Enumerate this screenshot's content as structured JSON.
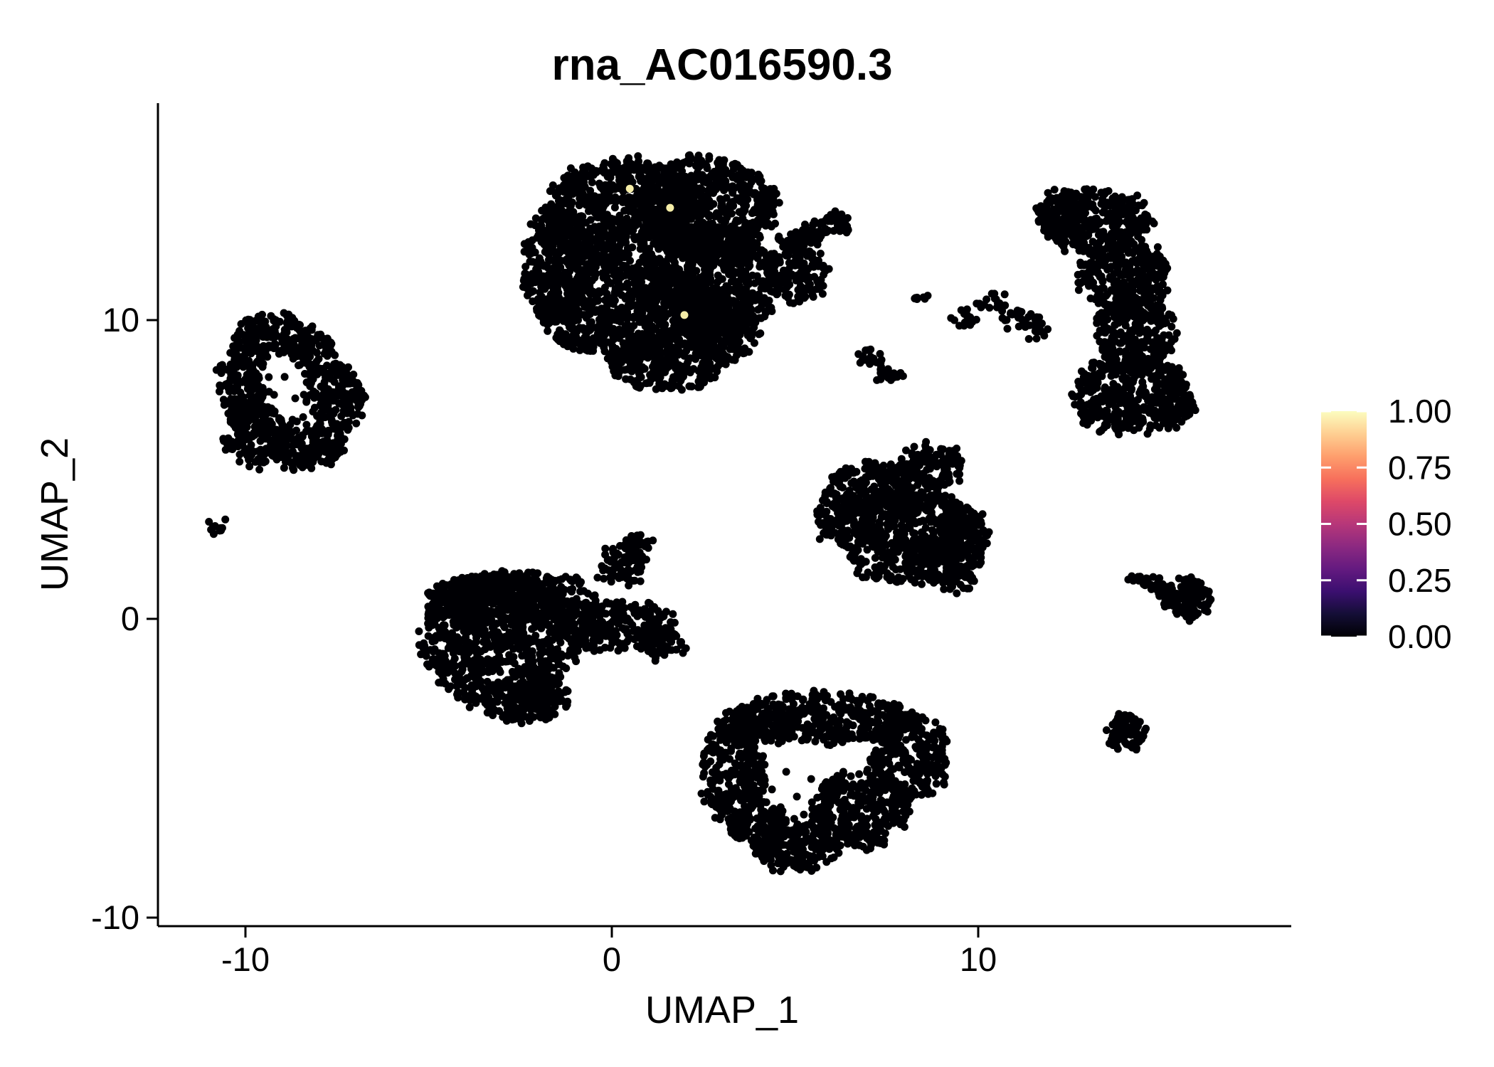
{
  "title": "rna_AC016590.3",
  "axes": {
    "x": {
      "label": "UMAP_1",
      "tick_labels": [
        "-10",
        "0",
        "10"
      ],
      "tick_values": [
        -10,
        0,
        10
      ]
    },
    "y": {
      "label": "UMAP_2",
      "tick_labels": [
        "10",
        "0",
        "-10"
      ],
      "tick_values": [
        10,
        0,
        -10
      ]
    }
  },
  "legend": {
    "labels": [
      "1.00",
      "0.75",
      "0.50",
      "0.25",
      "0.00"
    ],
    "values": [
      1.0,
      0.75,
      0.5,
      0.25,
      0.0
    ],
    "colormap": [
      [
        0.0,
        "#000004"
      ],
      [
        0.1,
        "#140E36"
      ],
      [
        0.2,
        "#3B0F70"
      ],
      [
        0.3,
        "#641A80"
      ],
      [
        0.4,
        "#8C2981"
      ],
      [
        0.5,
        "#B73779"
      ],
      [
        0.6,
        "#DE4968"
      ],
      [
        0.7,
        "#F7705C"
      ],
      [
        0.8,
        "#FE9F6D"
      ],
      [
        0.9,
        "#FECF92"
      ],
      [
        1.0,
        "#FCFDBF"
      ]
    ]
  },
  "colors": {
    "point": "#000004",
    "highlight": "#F5EDA8",
    "axis": "#000000",
    "background": "#FFFFFF",
    "legend_tick": "#FFFFFF"
  },
  "chart_data": {
    "type": "scatter",
    "title": "rna_AC016590.3",
    "xlabel": "UMAP_1",
    "ylabel": "UMAP_2",
    "xlim": [
      -12.4,
      18.6
    ],
    "ylim": [
      -10.3,
      17.3
    ],
    "grid": false,
    "legend_position": "right",
    "colorbar": {
      "min": 0.0,
      "max": 1.0,
      "ticks": [
        0.0,
        0.25,
        0.5,
        0.75,
        1.0
      ],
      "palette": "magma"
    },
    "point_radius_px": 5.5,
    "clusters": [
      {
        "name": "top-center-blob",
        "patches": [
          [
            0.3,
            13.5,
            2.2,
            1.9,
            750
          ],
          [
            2.6,
            13.8,
            1.9,
            1.7,
            575
          ],
          [
            0.6,
            10.3,
            2.6,
            1.6,
            740
          ],
          [
            2.9,
            11.3,
            1.7,
            1.8,
            550
          ],
          [
            -1.5,
            11.8,
            1.0,
            1.9,
            335
          ],
          [
            1.5,
            8.6,
            1.6,
            1.0,
            283
          ],
          [
            3.0,
            9.6,
            1.0,
            1.0,
            177
          ],
          [
            5.0,
            11.5,
            0.85,
            0.95,
            145
          ],
          [
            4.9,
            12.55,
            0.35,
            0.3,
            30
          ],
          [
            5.5,
            12.9,
            0.4,
            0.3,
            35
          ],
          [
            6.1,
            13.3,
            0.4,
            0.3,
            35
          ]
        ],
        "hole_points": []
      },
      {
        "name": "top-right-banana",
        "patches": [
          [
            13.2,
            13.3,
            1.55,
            1.07,
            300
          ],
          [
            12.35,
            13.55,
            0.7,
            0.8,
            100
          ],
          [
            13.98,
            11.43,
            1.26,
            1.31,
            300
          ],
          [
            14.27,
            9.52,
            1.07,
            1.31,
            255
          ],
          [
            14.17,
            7.5,
            1.65,
            1.31,
            390
          ],
          [
            15.3,
            7.2,
            0.6,
            0.8,
            90
          ]
        ],
        "hole_points": []
      },
      {
        "name": "left-ring-cluster",
        "patches": [
          [
            -9.22,
            9.52,
            1.07,
            0.71,
            140
          ],
          [
            -10.1,
            7.86,
            0.68,
            1.43,
            175
          ],
          [
            -9.71,
            6.19,
            0.87,
            1.07,
            167
          ],
          [
            -8.35,
            5.83,
            1.07,
            0.83,
            160
          ],
          [
            -7.57,
            7.38,
            0.78,
            1.19,
            170
          ],
          [
            -8.16,
            8.93,
            0.58,
            0.71,
            75
          ]
        ],
        "hole_points": [
          [
            -8.93,
            8.1
          ],
          [
            -9.22,
            7.5
          ],
          [
            -8.64,
            7.38
          ],
          [
            -9.9,
            6.79
          ],
          [
            -9.03,
            6.67
          ]
        ]
      },
      {
        "name": "left-tiny-cluster",
        "patches": [
          [
            -10.78,
            3.07,
            0.21,
            0.29,
            12
          ]
        ],
        "hole_points": []
      },
      {
        "name": "mid-right-triangle",
        "patches": [
          [
            8.74,
            5.12,
            0.87,
            0.71,
            111
          ],
          [
            7.38,
            4.29,
            1.55,
            0.95,
            264
          ],
          [
            6.41,
            3.33,
            0.87,
            0.95,
            148
          ],
          [
            8.35,
            3.1,
            1.65,
            1.19,
            352
          ],
          [
            8.16,
            1.9,
            1.75,
            0.71,
            222
          ],
          [
            9.51,
            2.62,
            0.78,
            1.19,
            166
          ],
          [
            9.51,
            1.31,
            0.49,
            0.36,
            32
          ]
        ],
        "hole_points": []
      },
      {
        "name": "bottom-left-blob",
        "patches": [
          [
            -3.11,
            -0.71,
            2.14,
            2.26,
            866
          ],
          [
            -2.72,
            0.71,
            2.33,
            0.83,
            346
          ],
          [
            0.0,
            -0.24,
            1.75,
            0.83,
            260
          ],
          [
            1.36,
            -0.83,
            0.68,
            0.48,
            58
          ],
          [
            0.29,
            1.79,
            0.62,
            0.71,
            79
          ],
          [
            0.68,
            2.38,
            0.39,
            0.43,
            30
          ],
          [
            -2.33,
            -2.74,
            1.17,
            0.71,
            149
          ]
        ],
        "hole_points": []
      },
      {
        "name": "right-wedge",
        "patches": [
          [
            15.69,
            0.71,
            0.62,
            0.67,
            100
          ],
          [
            15.05,
            0.95,
            0.35,
            0.29,
            18
          ],
          [
            14.75,
            1.15,
            0.25,
            0.18,
            12
          ],
          [
            14.35,
            1.3,
            0.2,
            0.15,
            8
          ]
        ],
        "hole_points": []
      },
      {
        "name": "bottom-center-ring",
        "patches": [
          [
            5.83,
            -3.33,
            2.52,
            0.83,
            374
          ],
          [
            8.16,
            -4.64,
            1.07,
            1.43,
            274
          ],
          [
            6.8,
            -6.43,
            1.36,
            1.31,
            319
          ],
          [
            5.05,
            -7.62,
            1.17,
            0.83,
            174
          ],
          [
            3.3,
            -5.24,
            0.87,
            1.67,
            260
          ],
          [
            3.98,
            -3.57,
            1.07,
            0.71,
            136
          ],
          [
            4.08,
            -6.9,
            0.87,
            0.71,
            111
          ]
        ],
        "hole_points": [
          [
            4.17,
            -4.88
          ],
          [
            4.76,
            -5.12
          ],
          [
            4.37,
            -5.71
          ],
          [
            5.05,
            -5.95
          ],
          [
            5.44,
            -5.36
          ],
          [
            3.88,
            -5.95
          ],
          [
            4.66,
            -6.43
          ],
          [
            5.24,
            -6.55
          ],
          [
            5.73,
            -5.95
          ]
        ]
      },
      {
        "name": "bottom-right-small-blob",
        "patches": [
          [
            14.02,
            -3.76,
            0.54,
            0.62,
            90
          ]
        ],
        "hole_points": []
      },
      {
        "name": "scattered-satellites",
        "patches": [
          [
            8.5,
            10.75,
            0.18,
            0.15,
            7
          ],
          [
            9.61,
            10.05,
            0.35,
            0.25,
            16
          ],
          [
            10.39,
            10.6,
            0.43,
            0.25,
            19
          ],
          [
            11.17,
            10.05,
            0.49,
            0.27,
            24
          ],
          [
            11.62,
            9.68,
            0.35,
            0.25,
            16
          ],
          [
            7.03,
            8.69,
            0.35,
            0.27,
            16
          ],
          [
            7.6,
            8.25,
            0.38,
            0.3,
            18
          ]
        ],
        "hole_points": [
          [
            6.41,
            12.93
          ],
          [
            -0.39,
            1.38
          ]
        ]
      }
    ],
    "highlighted_cells": [
      [
        0.49,
        14.4
      ],
      [
        1.59,
        13.76
      ],
      [
        1.98,
        10.17
      ]
    ]
  }
}
